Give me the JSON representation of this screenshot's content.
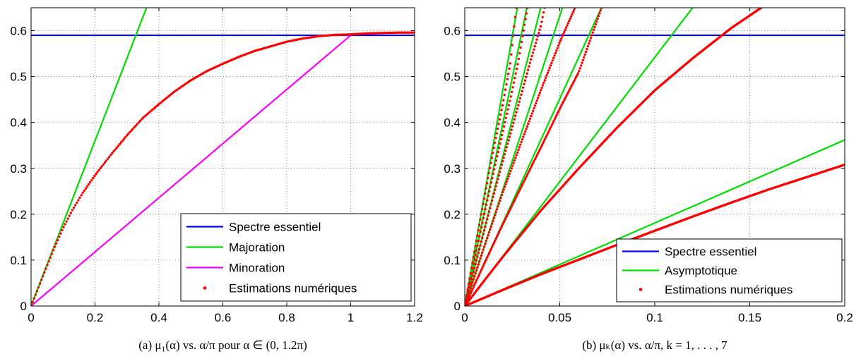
{
  "chart_data": [
    {
      "id": "a",
      "type": "line",
      "title": "",
      "xlabel": "",
      "ylabel": "",
      "caption": "(a)  μ₁(α) vs. α/π pour α ∈ (0, 1.2π)",
      "xlim": [
        0,
        1.2
      ],
      "ylim": [
        0,
        0.65
      ],
      "xticks": [
        0,
        0.2,
        0.4,
        0.6,
        0.8,
        1,
        1.2
      ],
      "xtick_labels": [
        "0",
        "0.2",
        "0.4",
        "0.6",
        "0.8",
        "1",
        "1.2"
      ],
      "yticks": [
        0,
        0.1,
        0.2,
        0.3,
        0.4,
        0.5,
        0.6
      ],
      "ytick_labels": [
        "0",
        "0.1",
        "0.2",
        "0.3",
        "0.4",
        "0.5",
        "0.6"
      ],
      "grid": true,
      "legend_position": "bottom-right",
      "series": [
        {
          "name": "Spectre essentiel",
          "kind": "line",
          "color": "#0000ff",
          "x": [
            0,
            1.2
          ],
          "y": [
            0.59,
            0.59
          ]
        },
        {
          "name": "Majoration",
          "kind": "line",
          "color": "#00dd00",
          "x": [
            0,
            0.3611
          ],
          "y": [
            0,
            0.65
          ]
        },
        {
          "name": "Minoration",
          "kind": "line",
          "color": "#ff00ff",
          "x": [
            0,
            1
          ],
          "y": [
            0,
            0.59
          ]
        },
        {
          "name": "Estimations numériques",
          "kind": "points",
          "color": "#ff0000",
          "x": [
            0,
            0.01,
            0.02,
            0.03,
            0.05,
            0.07,
            0.1,
            0.13,
            0.16,
            0.2,
            0.25,
            0.3,
            0.35,
            0.4,
            0.45,
            0.5,
            0.55,
            0.6,
            0.65,
            0.7,
            0.75,
            0.8,
            0.85,
            0.9,
            0.95,
            1.0,
            1.05,
            1.1,
            1.15,
            1.2
          ],
          "y": [
            0,
            0.018,
            0.035,
            0.053,
            0.088,
            0.123,
            0.17,
            0.21,
            0.245,
            0.285,
            0.33,
            0.372,
            0.41,
            0.44,
            0.468,
            0.492,
            0.512,
            0.528,
            0.543,
            0.556,
            0.566,
            0.576,
            0.583,
            0.588,
            0.591,
            0.592,
            0.594,
            0.595,
            0.596,
            0.596
          ]
        }
      ]
    },
    {
      "id": "b",
      "type": "line",
      "title": "",
      "xlabel": "",
      "ylabel": "",
      "caption": "(b)  μₖ(α) vs. α/π, k = 1, . . . , 7",
      "xlim": [
        0,
        0.2
      ],
      "ylim": [
        0,
        0.65
      ],
      "xticks": [
        0,
        0.05,
        0.1,
        0.15,
        0.2
      ],
      "xtick_labels": [
        "0",
        "0.05",
        "0.1",
        "0.15",
        "0.2"
      ],
      "yticks": [
        0,
        0.1,
        0.2,
        0.3,
        0.4,
        0.5,
        0.6
      ],
      "ytick_labels": [
        "0",
        "0.1",
        "0.2",
        "0.3",
        "0.4",
        "0.5",
        "0.6"
      ],
      "grid": true,
      "legend_position": "bottom-right",
      "series": [
        {
          "name": "Spectre essentiel",
          "kind": "line",
          "color": "#0000ff",
          "x": [
            0,
            0.2
          ],
          "y": [
            0.59,
            0.59
          ]
        },
        {
          "name": "Asymptotique",
          "kind": "lines",
          "color": "#00dd00",
          "slopes": [
            1.81,
            5.42,
            9.04,
            12.65,
            16.27,
            19.89,
            23.5
          ]
        },
        {
          "name": "Estimations numériques",
          "kind": "points",
          "color": "#ff0000",
          "curves": [
            {
              "x": [
                0,
                0.02,
                0.04,
                0.06,
                0.08,
                0.1,
                0.12,
                0.14,
                0.16,
                0.18,
                0.2
              ],
              "y": [
                0,
                0.035,
                0.069,
                0.101,
                0.133,
                0.164,
                0.195,
                0.225,
                0.254,
                0.281,
                0.308
              ]
            },
            {
              "x": [
                0,
                0.01,
                0.02,
                0.04,
                0.06,
                0.08,
                0.1,
                0.12,
                0.14,
                0.156
              ],
              "y": [
                0,
                0.054,
                0.107,
                0.208,
                0.3,
                0.388,
                0.47,
                0.54,
                0.605,
                0.65
              ]
            },
            {
              "x": [
                0,
                0.005,
                0.01,
                0.02,
                0.03,
                0.04,
                0.05,
                0.06,
                0.072
              ],
              "y": [
                0,
                0.045,
                0.09,
                0.178,
                0.262,
                0.345,
                0.43,
                0.51,
                0.65
              ]
            },
            {
              "x": [
                0,
                0.005,
                0.01,
                0.02,
                0.03,
                0.04,
                0.05,
                0.058
              ],
              "y": [
                0,
                0.063,
                0.126,
                0.248,
                0.36,
                0.47,
                0.575,
                0.65
              ]
            },
            {
              "x": [
                0,
                0.005,
                0.01,
                0.015,
                0.02,
                0.025,
                0.03,
                0.035,
                0.04,
                0.042
              ],
              "y": [
                0,
                0.081,
                0.161,
                0.24,
                0.316,
                0.39,
                0.465,
                0.54,
                0.61,
                0.65
              ]
            },
            {
              "x": [
                0,
                0.004,
                0.008,
                0.012,
                0.016,
                0.02,
                0.024,
                0.028,
                0.033
              ],
              "y": [
                0,
                0.079,
                0.157,
                0.233,
                0.308,
                0.38,
                0.452,
                0.53,
                0.65
              ]
            },
            {
              "x": [
                0,
                0.004,
                0.008,
                0.012,
                0.016,
                0.02,
                0.024,
                0.027
              ],
              "y": [
                0,
                0.093,
                0.185,
                0.274,
                0.36,
                0.44,
                0.53,
                0.65
              ]
            }
          ]
        }
      ]
    }
  ]
}
